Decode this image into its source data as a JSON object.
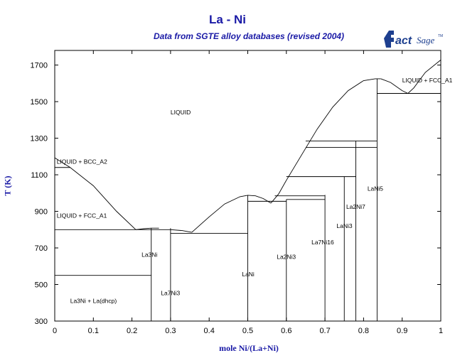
{
  "chart_data": {
    "type": "line",
    "title": "La - Ni",
    "subtitle": "Data from SGTE alloy databases (revised 2004)",
    "logo_text": "FactSage",
    "xlabel": "mole Ni/(La+Ni)",
    "ylabel": "T (K)",
    "xlim": [
      0,
      1
    ],
    "ylim": [
      300,
      1780
    ],
    "grid": false,
    "x_ticks": [
      0,
      0.1,
      0.2,
      0.3,
      0.4,
      0.5,
      0.6,
      0.7,
      0.8,
      0.9,
      1
    ],
    "x_tick_labels": [
      "0",
      "0.1",
      "0.2",
      "0.3",
      "0.4",
      "0.5",
      "0.6",
      "0.7",
      "0.8",
      "0.9",
      "1"
    ],
    "y_ticks": [
      300,
      500,
      700,
      900,
      1100,
      1300,
      1500,
      1700
    ],
    "y_tick_labels": [
      "300",
      "500",
      "700",
      "900",
      "1100",
      "1300",
      "1500",
      "1700"
    ],
    "curves": [
      {
        "x": [
          0,
          0.04,
          0.1,
          0.16,
          0.21
        ],
        "y": [
          1193,
          1140,
          1040,
          900,
          800
        ]
      },
      {
        "x": [
          0.21,
          0.23,
          0.25,
          0.27
        ],
        "y": [
          800,
          805,
          808,
          808
        ]
      },
      {
        "x": [
          0.3,
          0.33,
          0.355
        ],
        "y": [
          800,
          795,
          785
        ]
      },
      {
        "x": [
          0.355,
          0.4,
          0.44,
          0.48,
          0.5,
          0.52,
          0.54,
          0.56
        ],
        "y": [
          785,
          870,
          940,
          980,
          988,
          985,
          970,
          945
        ]
      },
      {
        "x": [
          0.56,
          0.58,
          0.6,
          0.64,
          0.68,
          0.72,
          0.76,
          0.8,
          0.83,
          0.845
        ],
        "y": [
          945,
          995,
          1070,
          1210,
          1350,
          1470,
          1560,
          1615,
          1625,
          1625
        ]
      },
      {
        "x": [
          0.845,
          0.87,
          0.9,
          0.915,
          0.93,
          0.96,
          1
        ],
        "y": [
          1625,
          1605,
          1560,
          1545,
          1575,
          1660,
          1728
        ]
      }
    ],
    "horizontal_lines": [
      {
        "y": 1140,
        "x": [
          0,
          0.04
        ]
      },
      {
        "y": 800,
        "x": [
          0,
          0.3
        ]
      },
      {
        "y": 550,
        "x": [
          0,
          0.25
        ]
      },
      {
        "y": 780,
        "x": [
          0.3,
          0.5
        ]
      },
      {
        "y": 955,
        "x": [
          0.5,
          0.6
        ]
      },
      {
        "y": 965,
        "x": [
          0.6,
          0.7
        ]
      },
      {
        "y": 985,
        "x": [
          0.57,
          0.7
        ]
      },
      {
        "y": 1090,
        "x": [
          0.6,
          0.78
        ]
      },
      {
        "y": 1250,
        "x": [
          0.65,
          0.835
        ]
      },
      {
        "y": 1285,
        "x": [
          0.65,
          0.835
        ]
      },
      {
        "y": 1545,
        "x": [
          0.835,
          1
        ]
      }
    ],
    "vertical_lines": [
      {
        "x": 0.25,
        "y": [
          300,
          808
        ]
      },
      {
        "x": 0.3,
        "y": [
          300,
          808
        ]
      },
      {
        "x": 0.5,
        "y": [
          300,
          988
        ]
      },
      {
        "x": 0.6,
        "y": [
          300,
          965
        ]
      },
      {
        "x": 0.7,
        "y": [
          300,
          990
        ]
      },
      {
        "x": 0.75,
        "y": [
          300,
          1090
        ]
      },
      {
        "x": 0.78,
        "y": [
          300,
          1285
        ]
      },
      {
        "x": 0.835,
        "y": [
          300,
          1625
        ]
      }
    ],
    "annotations": [
      {
        "text": "LIQUID",
        "x": 0.3,
        "y": 1430
      },
      {
        "text": "LIQUID + BCC_A2",
        "x": 0.005,
        "y": 1160
      },
      {
        "text": "LIQUID + FCC_A1",
        "x": 0.005,
        "y": 865
      },
      {
        "text": "LIQUID + FCC_A1",
        "x": 0.9,
        "y": 1605
      },
      {
        "text": "La3Ni",
        "x": 0.225,
        "y": 652
      },
      {
        "text": "La7Ni3",
        "x": 0.275,
        "y": 442
      },
      {
        "text": "La3Ni + La(dhcp)",
        "x": 0.04,
        "y": 400
      },
      {
        "text": "LaNi",
        "x": 0.485,
        "y": 545
      },
      {
        "text": "La2Ni3",
        "x": 0.575,
        "y": 640
      },
      {
        "text": "La7Ni16",
        "x": 0.665,
        "y": 720
      },
      {
        "text": "LaNi3",
        "x": 0.73,
        "y": 808
      },
      {
        "text": "La2Ni7",
        "x": 0.755,
        "y": 913
      },
      {
        "text": "LaNi5",
        "x": 0.81,
        "y": 1012
      }
    ],
    "colors": {
      "title": "#1a1aa6",
      "lines": "#000000",
      "logo": "#1d3f8f"
    }
  }
}
